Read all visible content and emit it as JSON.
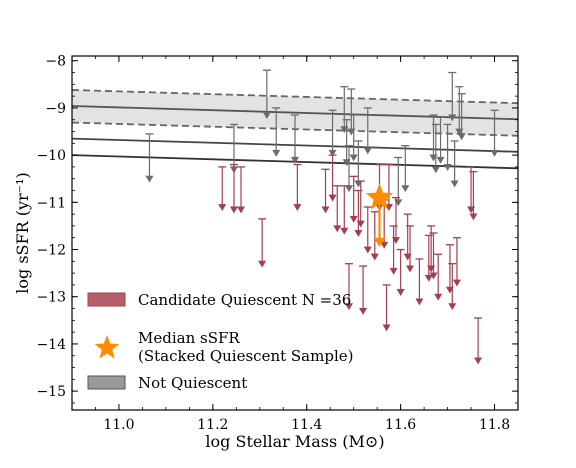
{
  "chart_data": {
    "type": "scatter",
    "xlabel": "log Stellar Mass (M⊙)",
    "ylabel": "log sSFR (yr⁻¹)",
    "xlim": [
      10.9,
      11.85
    ],
    "ylim": [
      -15.4,
      -7.9
    ],
    "x_ticks": [
      "11.0",
      "11.2",
      "11.4",
      "11.6",
      "11.8"
    ],
    "y_ticks": [
      "−8",
      "−9",
      "−10",
      "−11",
      "−12",
      "−13",
      "−14",
      "−15"
    ],
    "grid": false,
    "legend_placement": "lower-left",
    "colors": {
      "quiescent": "#a1404f",
      "not_quiescent": "#6b6b6b",
      "median": "#ff8c00",
      "band_fill": "#e3e3e3",
      "line": "#444444"
    },
    "legend": [
      {
        "label": "Candidate Quiescent N =36",
        "kind": "quiescent"
      },
      {
        "label": "Median sSFR",
        "label2": "(Stacked Quiescent Sample)",
        "kind": "median"
      },
      {
        "label": "Not Quiescent",
        "kind": "not_quiescent"
      }
    ],
    "reference_lines": [
      {
        "style": "solid",
        "color": "#555555",
        "points": [
          [
            10.9,
            -8.96
          ],
          [
            11.85,
            -9.24
          ]
        ]
      },
      {
        "style": "dashed",
        "color": "#666666",
        "points": [
          [
            10.9,
            -8.62
          ],
          [
            11.85,
            -8.9
          ]
        ]
      },
      {
        "style": "dashed",
        "color": "#666666",
        "points": [
          [
            10.9,
            -9.31
          ],
          [
            11.85,
            -9.59
          ]
        ]
      },
      {
        "style": "solid",
        "color": "#444444",
        "points": [
          [
            10.9,
            -9.65
          ],
          [
            11.85,
            -9.93
          ]
        ]
      },
      {
        "style": "solid",
        "color": "#333333",
        "points": [
          [
            10.9,
            -10.0
          ],
          [
            11.85,
            -10.28
          ]
        ]
      }
    ],
    "band": {
      "upper": [
        [
          10.9,
          -8.62
        ],
        [
          11.85,
          -8.9
        ]
      ],
      "lower": [
        [
          10.9,
          -9.31
        ],
        [
          11.85,
          -9.59
        ]
      ]
    },
    "quiescent_limits": [
      {
        "x": 11.22,
        "y_top": -10.25,
        "y_bottom": -11.15
      },
      {
        "x": 11.245,
        "y_top": -10.2,
        "y_bottom": -11.2
      },
      {
        "x": 11.26,
        "y_top": -10.25,
        "y_bottom": -11.2
      },
      {
        "x": 11.305,
        "y_top": -11.35,
        "y_bottom": -12.35
      },
      {
        "x": 11.38,
        "y_top": -10.2,
        "y_bottom": -11.15
      },
      {
        "x": 11.44,
        "y_top": -10.3,
        "y_bottom": -11.2
      },
      {
        "x": 11.455,
        "y_top": -10.0,
        "y_bottom": -10.95
      },
      {
        "x": 11.465,
        "y_top": -10.65,
        "y_bottom": -11.6
      },
      {
        "x": 11.48,
        "y_top": -10.65,
        "y_bottom": -11.65
      },
      {
        "x": 11.49,
        "y_top": -12.3,
        "y_bottom": -13.25
      },
      {
        "x": 11.5,
        "y_top": -10.45,
        "y_bottom": -11.4
      },
      {
        "x": 11.51,
        "y_top": -10.75,
        "y_bottom": -11.7
      },
      {
        "x": 11.515,
        "y_top": -10.55,
        "y_bottom": -11.5
      },
      {
        "x": 11.52,
        "y_top": -12.35,
        "y_bottom": -13.35
      },
      {
        "x": 11.545,
        "y_top": -11.2,
        "y_bottom": -12.2
      },
      {
        "x": 11.555,
        "y_top": -10.2,
        "y_bottom": -11.15
      },
      {
        "x": 11.565,
        "y_top": -10.95,
        "y_bottom": -11.95
      },
      {
        "x": 11.57,
        "y_top": -12.75,
        "y_bottom": -13.7
      },
      {
        "x": 11.575,
        "y_top": -10.2,
        "y_bottom": -11.15
      },
      {
        "x": 11.585,
        "y_top": -11.5,
        "y_bottom": -12.5
      },
      {
        "x": 11.59,
        "y_top": -10.9,
        "y_bottom": -11.85
      },
      {
        "x": 11.6,
        "y_top": -12.0,
        "y_bottom": -12.95
      },
      {
        "x": 11.615,
        "y_top": -11.25,
        "y_bottom": -12.2
      },
      {
        "x": 11.62,
        "y_top": -11.5,
        "y_bottom": -12.45
      },
      {
        "x": 11.64,
        "y_top": -12.2,
        "y_bottom": -13.15
      },
      {
        "x": 11.66,
        "y_top": -11.7,
        "y_bottom": -12.65
      },
      {
        "x": 11.665,
        "y_top": -11.5,
        "y_bottom": -12.45
      },
      {
        "x": 11.67,
        "y_top": -11.65,
        "y_bottom": -12.6
      },
      {
        "x": 11.68,
        "y_top": -12.1,
        "y_bottom": -13.05
      },
      {
        "x": 11.705,
        "y_top": -11.9,
        "y_bottom": -12.9
      },
      {
        "x": 11.71,
        "y_top": -12.3,
        "y_bottom": -13.25
      },
      {
        "x": 11.72,
        "y_top": -11.75,
        "y_bottom": -12.75
      },
      {
        "x": 11.75,
        "y_top": -10.25,
        "y_bottom": -11.2
      },
      {
        "x": 11.755,
        "y_top": -10.35,
        "y_bottom": -11.35
      },
      {
        "x": 11.765,
        "y_top": -13.45,
        "y_bottom": -14.4
      },
      {
        "x": 11.53,
        "y_top": -11.1,
        "y_bottom": -12.05
      }
    ],
    "not_quiescent_limits": [
      {
        "x": 11.065,
        "y_top": -9.55,
        "y_bottom": -10.55
      },
      {
        "x": 11.245,
        "y_top": -9.35,
        "y_bottom": -10.35
      },
      {
        "x": 11.315,
        "y_top": -8.2,
        "y_bottom": -9.2
      },
      {
        "x": 11.335,
        "y_top": -9.0,
        "y_bottom": -10.0
      },
      {
        "x": 11.375,
        "y_top": -9.15,
        "y_bottom": -10.15
      },
      {
        "x": 11.455,
        "y_top": -9.05,
        "y_bottom": -10.0
      },
      {
        "x": 11.48,
        "y_top": -8.55,
        "y_bottom": -9.5
      },
      {
        "x": 11.485,
        "y_top": -9.25,
        "y_bottom": -10.2
      },
      {
        "x": 11.49,
        "y_top": -9.8,
        "y_bottom": -10.75
      },
      {
        "x": 11.495,
        "y_top": -8.6,
        "y_bottom": -9.55
      },
      {
        "x": 11.5,
        "y_top": -9.15,
        "y_bottom": -10.1
      },
      {
        "x": 11.51,
        "y_top": -9.7,
        "y_bottom": -10.65
      },
      {
        "x": 11.53,
        "y_top": -9.0,
        "y_bottom": -9.95
      },
      {
        "x": 11.595,
        "y_top": -10.05,
        "y_bottom": -11.05
      },
      {
        "x": 11.61,
        "y_top": -9.8,
        "y_bottom": -10.75
      },
      {
        "x": 11.67,
        "y_top": -9.15,
        "y_bottom": -10.1
      },
      {
        "x": 11.675,
        "y_top": -9.35,
        "y_bottom": -10.35
      },
      {
        "x": 11.685,
        "y_top": -9.2,
        "y_bottom": -10.15
      },
      {
        "x": 11.7,
        "y_top": -9.35,
        "y_bottom": -10.3
      },
      {
        "x": 11.71,
        "y_top": -8.25,
        "y_bottom": -9.25
      },
      {
        "x": 11.715,
        "y_top": -9.7,
        "y_bottom": -10.65
      },
      {
        "x": 11.725,
        "y_top": -8.55,
        "y_bottom": -9.55
      },
      {
        "x": 11.73,
        "y_top": -8.7,
        "y_bottom": -9.65
      },
      {
        "x": 11.8,
        "y_top": -9.05,
        "y_bottom": -10.0
      }
    ],
    "median": {
      "x": 11.555,
      "y": -10.9,
      "err_low": -11.9
    }
  }
}
